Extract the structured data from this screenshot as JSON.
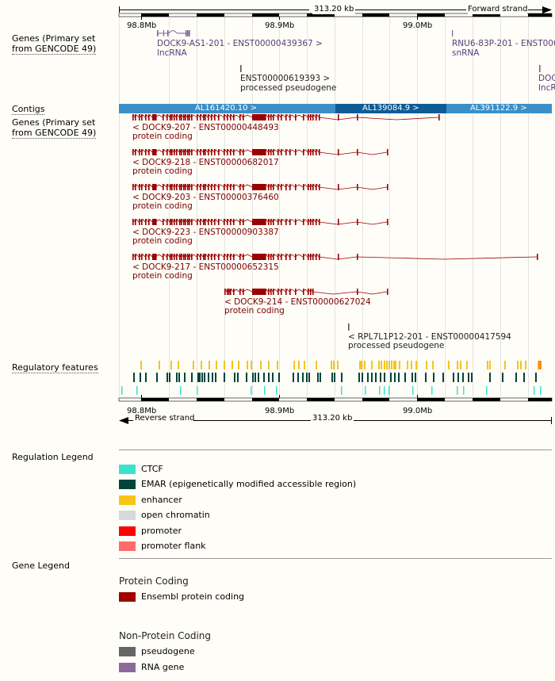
{
  "scale": {
    "span_top": "313.20 kb",
    "forward_strand": "Forward strand",
    "span_bottom": "313.20 kb",
    "reverse_strand": "Reverse strand",
    "ticks": [
      "98.8Mb",
      "98.9Mb",
      "99.0Mb"
    ]
  },
  "track_labels": {
    "genes_top_1": "Genes (Primary set",
    "genes_top_2": "from GENCODE 49)",
    "contigs": "Contigs",
    "genes_bottom_1": "Genes (Primary set",
    "genes_bottom_2": "from GENCODE 49)",
    "regulatory": "Regulatory features"
  },
  "forward_genes": [
    {
      "name": "DOCK9-AS1-201 - ENST00000439367 >",
      "type": "lncRNA"
    },
    {
      "name": "RNU6-83P-201 - ENST0000",
      "type": "snRNA"
    },
    {
      "name": "ENST00000619393 >",
      "type": "processed pseudogene"
    },
    {
      "name": "DOC",
      "type": "lncR"
    }
  ],
  "contigs": [
    "AL161420.10 >",
    "AL139084.9 >",
    "AL391122.9 >"
  ],
  "reverse_genes": [
    {
      "name": "< DOCK9-207 - ENST00000448493",
      "type": "protein coding"
    },
    {
      "name": "< DOCK9-218 - ENST00000682017",
      "type": "protein coding"
    },
    {
      "name": "< DOCK9-203 - ENST00000376460",
      "type": "protein coding"
    },
    {
      "name": "< DOCK9-223 - ENST00000903387",
      "type": "protein coding"
    },
    {
      "name": "< DOCK9-217 - ENST00000652315",
      "type": "protein coding"
    },
    {
      "name": "< DOCK9-214 - ENST00000627024",
      "type": "protein coding"
    },
    {
      "name": "< RPL7L1P12-201 - ENST00000417594",
      "type": "processed pseudogene"
    }
  ],
  "regulation_legend": {
    "title": "Regulation Legend",
    "items": [
      {
        "label": "CTCF",
        "color": "#40e0d0"
      },
      {
        "label": "EMAR (epigenetically modified accessible region)",
        "color": "#00443a"
      },
      {
        "label": "enhancer",
        "color": "#f5c518"
      },
      {
        "label": "open chromatin",
        "color": "#d9d9d9"
      },
      {
        "label": "promoter",
        "color": "#ff0000"
      },
      {
        "label": "promoter flank",
        "color": "#ff6a6a"
      }
    ]
  },
  "gene_legend": {
    "title": "Gene Legend",
    "protein_coding_header": "Protein Coding",
    "protein_items": [
      {
        "label": "Ensembl protein coding",
        "color": "#a00000"
      }
    ],
    "non_protein_header": "Non-Protein Coding",
    "non_protein_items": [
      {
        "label": "pseudogene",
        "color": "#666666"
      },
      {
        "label": "RNA gene",
        "color": "#8b6a9b"
      }
    ]
  }
}
